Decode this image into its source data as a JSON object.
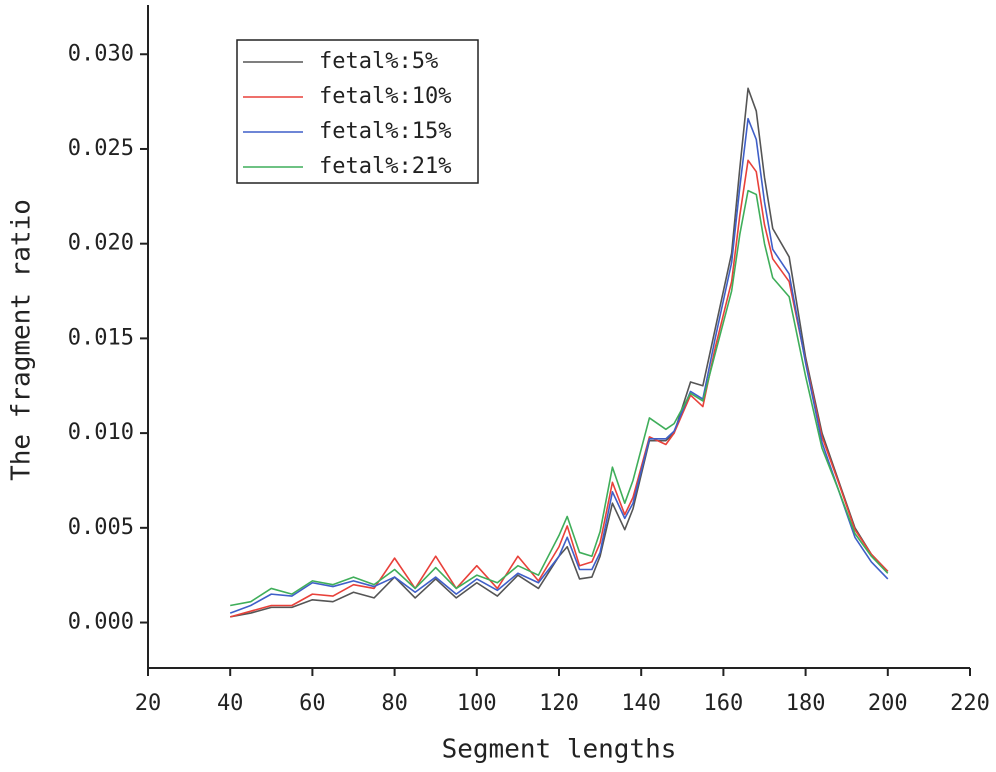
{
  "chart_data": {
    "type": "line",
    "x_label": "Segment lengths",
    "y_label": "The fragment ratio",
    "x": [
      40,
      45,
      50,
      55,
      60,
      65,
      70,
      75,
      80,
      85,
      90,
      95,
      100,
      105,
      110,
      115,
      120,
      122,
      125,
      128,
      130,
      133,
      136,
      138,
      142,
      146,
      148,
      152,
      155,
      158,
      162,
      164,
      166,
      168,
      170,
      172,
      176,
      180,
      184,
      188,
      192,
      196,
      200
    ],
    "series": [
      {
        "name": "fetal%:5%",
        "color": "#555555",
        "values": [
          0.0003,
          0.0005,
          0.0008,
          0.0008,
          0.0012,
          0.0011,
          0.0016,
          0.0013,
          0.0024,
          0.0013,
          0.0023,
          0.0013,
          0.0021,
          0.0014,
          0.0025,
          0.0018,
          0.0035,
          0.004,
          0.0023,
          0.0024,
          0.0035,
          0.0063,
          0.0049,
          0.006,
          0.0096,
          0.0096,
          0.01,
          0.0127,
          0.0125,
          0.0155,
          0.0195,
          0.024,
          0.0282,
          0.027,
          0.0235,
          0.0208,
          0.0193,
          0.014,
          0.01,
          0.0075,
          0.005,
          0.0036,
          0.0027
        ]
      },
      {
        "name": "fetal%:10%",
        "color": "#e8413a",
        "values": [
          0.0003,
          0.0006,
          0.0009,
          0.0009,
          0.0015,
          0.0014,
          0.002,
          0.0018,
          0.0034,
          0.0018,
          0.0035,
          0.0018,
          0.003,
          0.0018,
          0.0035,
          0.0022,
          0.004,
          0.0051,
          0.003,
          0.0032,
          0.0042,
          0.0074,
          0.0057,
          0.0066,
          0.0098,
          0.0094,
          0.01,
          0.012,
          0.0114,
          0.0145,
          0.018,
          0.0215,
          0.0244,
          0.0238,
          0.021,
          0.0192,
          0.018,
          0.0138,
          0.0098,
          0.0074,
          0.0049,
          0.0036,
          0.0027
        ]
      },
      {
        "name": "fetal%:15%",
        "color": "#3f5fc8",
        "values": [
          0.0005,
          0.0009,
          0.0015,
          0.0014,
          0.0021,
          0.0019,
          0.0022,
          0.0019,
          0.0024,
          0.0016,
          0.0024,
          0.0015,
          0.0023,
          0.0017,
          0.0026,
          0.0021,
          0.0035,
          0.0045,
          0.0028,
          0.0028,
          0.0037,
          0.0069,
          0.0055,
          0.0063,
          0.0097,
          0.0097,
          0.0101,
          0.0122,
          0.0118,
          0.015,
          0.019,
          0.023,
          0.0266,
          0.0255,
          0.0222,
          0.0197,
          0.0184,
          0.0137,
          0.0095,
          0.007,
          0.0045,
          0.0032,
          0.0023
        ]
      },
      {
        "name": "fetal%:21%",
        "color": "#3fae5a",
        "values": [
          0.0009,
          0.0011,
          0.0018,
          0.0015,
          0.0022,
          0.002,
          0.0024,
          0.002,
          0.0028,
          0.0018,
          0.0029,
          0.0018,
          0.0025,
          0.0021,
          0.003,
          0.0025,
          0.0046,
          0.0056,
          0.0037,
          0.0035,
          0.0048,
          0.0082,
          0.0063,
          0.0075,
          0.0108,
          0.0102,
          0.0105,
          0.0121,
          0.0117,
          0.0142,
          0.0175,
          0.0205,
          0.0228,
          0.0226,
          0.02,
          0.0182,
          0.0172,
          0.013,
          0.0092,
          0.007,
          0.0047,
          0.0035,
          0.0026
        ]
      }
    ],
    "xlim": [
      20,
      220
    ],
    "xticks": [
      20,
      40,
      60,
      80,
      100,
      120,
      140,
      160,
      180,
      200,
      220
    ],
    "ylim": [
      -0.0024,
      0.0326
    ],
    "yticks": [
      {
        "value": 0,
        "label": "0.000"
      },
      0.005,
      {
        "value": 0.01,
        "label": "0.010"
      },
      0.015,
      {
        "value": 0.02,
        "label": "0.020"
      },
      0.025,
      {
        "value": 0.03,
        "label": "0.030"
      }
    ],
    "legend": "top-left"
  }
}
